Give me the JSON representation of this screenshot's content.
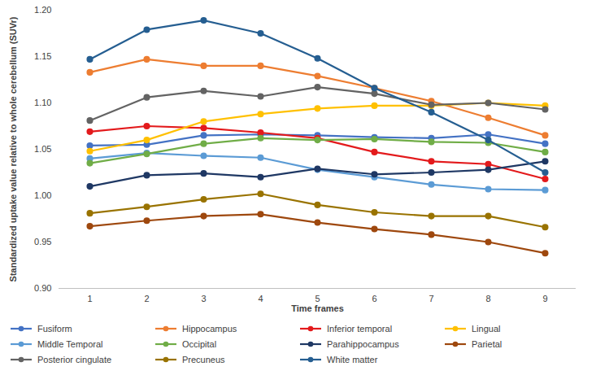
{
  "chart_data": {
    "type": "line",
    "x_label": "Time frames",
    "y_label": "Standardized uptake value relative to whole cerebellum (SUVr)",
    "categories": [
      "1",
      "2",
      "3",
      "4",
      "5",
      "6",
      "7",
      "8",
      "9"
    ],
    "ylim": [
      0.9,
      1.2
    ],
    "yticks": [
      {
        "value": 0.9,
        "label": "0.90"
      },
      0.95,
      {
        "value": 1,
        "label": "1.00"
      },
      1.05,
      {
        "value": 1.1,
        "label": "1.10"
      },
      1.15,
      {
        "value": 1.2,
        "label": "1.20"
      }
    ],
    "grid": false,
    "legend": "bottom",
    "marker": "circle",
    "series": [
      {
        "name": "Fusiform",
        "color": "#4472c4",
        "values": [
          1.054,
          1.055,
          1.065,
          1.066,
          1.065,
          1.063,
          1.062,
          1.066,
          1.056
        ]
      },
      {
        "name": "Hippocampus",
        "color": "#ed7d31",
        "values": [
          1.133,
          1.147,
          1.14,
          1.14,
          1.129,
          1.116,
          1.102,
          1.084,
          1.065
        ]
      },
      {
        "name": "Inferior temporal",
        "color": "#e31a1c",
        "values": [
          1.069,
          1.075,
          1.073,
          1.068,
          1.062,
          1.047,
          1.037,
          1.034,
          1.018
        ]
      },
      {
        "name": "Lingual",
        "color": "#ffc000",
        "values": [
          1.048,
          1.06,
          1.08,
          1.088,
          1.094,
          1.097,
          1.097,
          1.1,
          1.097
        ]
      },
      {
        "name": "Middle Temporal",
        "color": "#5b9bd5",
        "values": [
          1.04,
          1.046,
          1.043,
          1.041,
          1.028,
          1.02,
          1.012,
          1.007,
          1.006
        ]
      },
      {
        "name": "Occipital",
        "color": "#70ad47",
        "values": [
          1.035,
          1.045,
          1.056,
          1.062,
          1.06,
          1.061,
          1.058,
          1.057,
          1.047
        ]
      },
      {
        "name": "Parahippocampus",
        "color": "#1f3864",
        "values": [
          1.01,
          1.022,
          1.024,
          1.02,
          1.029,
          1.023,
          1.025,
          1.028,
          1.037
        ]
      },
      {
        "name": "Parietal",
        "color": "#9e480e",
        "values": [
          0.967,
          0.973,
          0.978,
          0.98,
          0.971,
          0.964,
          0.958,
          0.95,
          0.938
        ]
      },
      {
        "name": "Posterior cingulate",
        "color": "#636363",
        "values": [
          1.081,
          1.106,
          1.113,
          1.107,
          1.117,
          1.11,
          1.098,
          1.1,
          1.093
        ]
      },
      {
        "name": "Precuneus",
        "color": "#997300",
        "values": [
          0.981,
          0.988,
          0.996,
          1.002,
          0.99,
          0.982,
          0.978,
          0.978,
          0.966
        ]
      },
      {
        "name": "White matter",
        "color": "#255e91",
        "values": [
          1.147,
          1.179,
          1.189,
          1.175,
          1.148,
          1.116,
          1.09,
          1.06,
          1.025
        ]
      }
    ]
  }
}
